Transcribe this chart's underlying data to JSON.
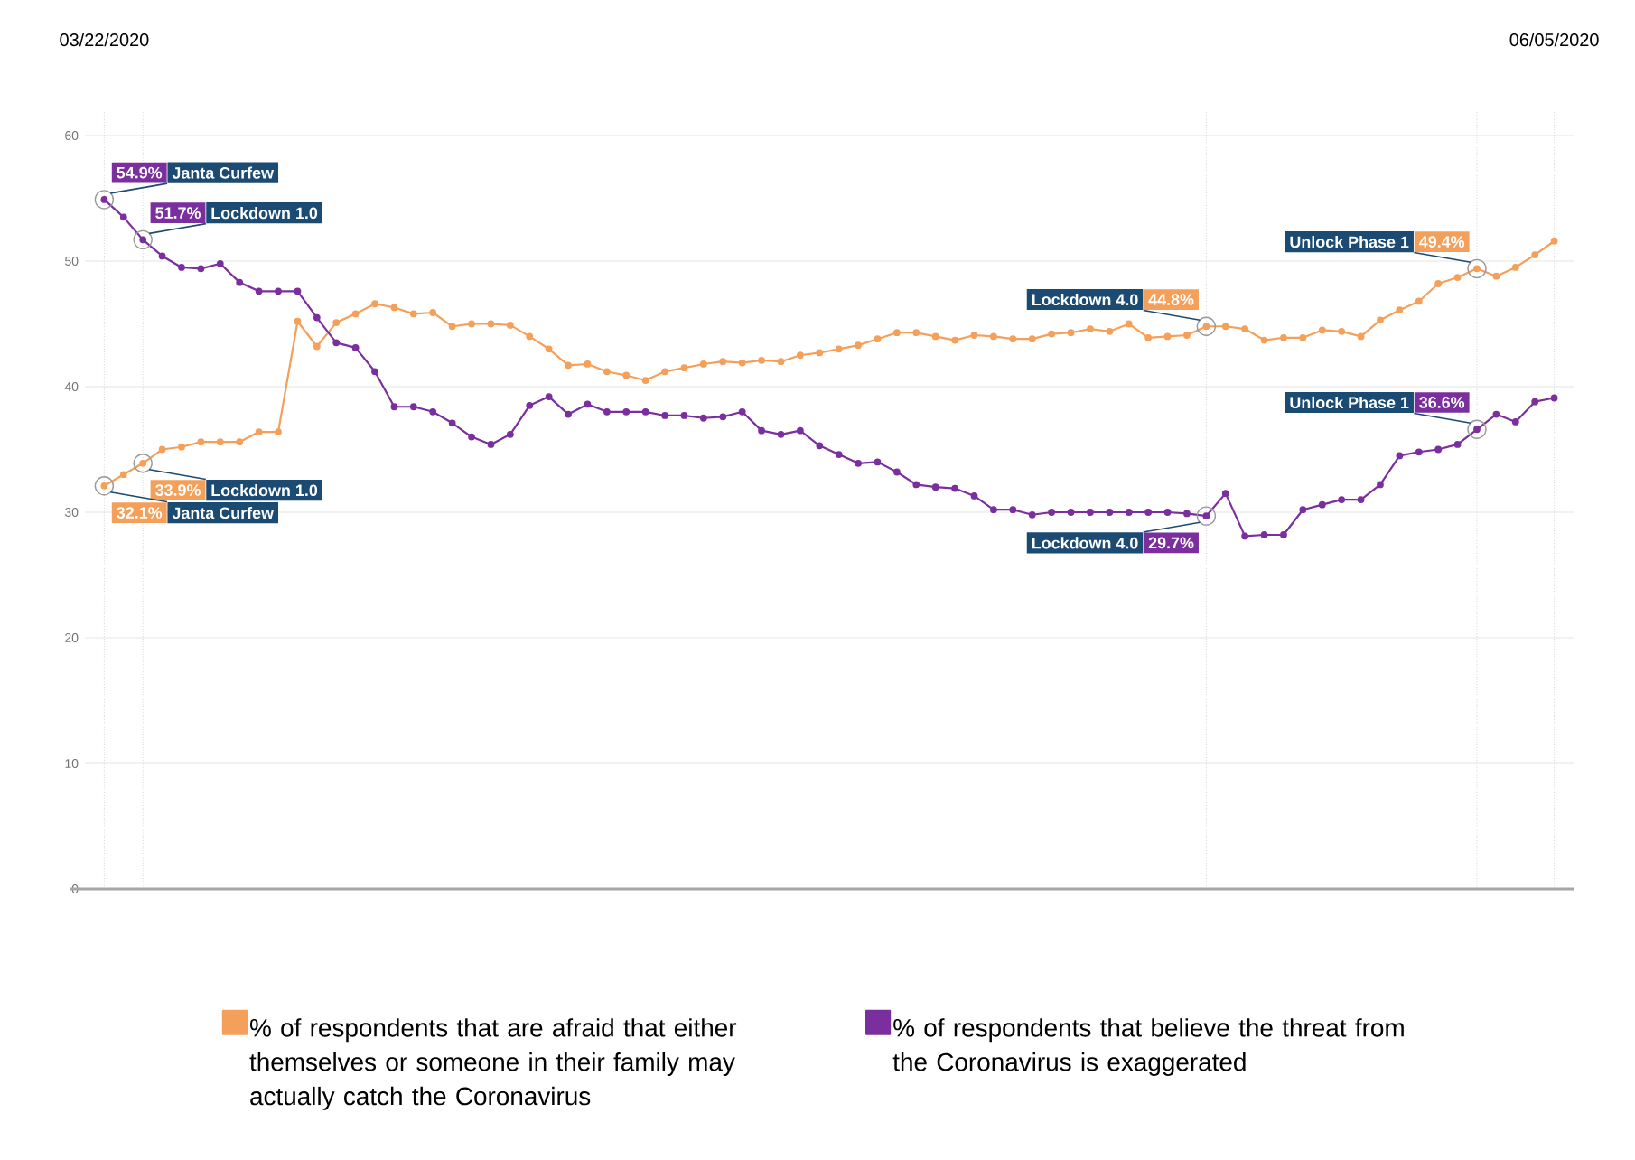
{
  "chart_data": {
    "type": "line",
    "x": [
      "2020-03-22",
      "2020-03-23",
      "2020-03-24",
      "2020-03-25",
      "2020-03-26",
      "2020-03-27",
      "2020-03-28",
      "2020-03-29",
      "2020-03-30",
      "2020-03-31",
      "2020-04-01",
      "2020-04-02",
      "2020-04-03",
      "2020-04-04",
      "2020-04-05",
      "2020-04-06",
      "2020-04-07",
      "2020-04-08",
      "2020-04-09",
      "2020-04-10",
      "2020-04-11",
      "2020-04-12",
      "2020-04-13",
      "2020-04-14",
      "2020-04-15",
      "2020-04-16",
      "2020-04-17",
      "2020-04-18",
      "2020-04-19",
      "2020-04-20",
      "2020-04-21",
      "2020-04-22",
      "2020-04-23",
      "2020-04-24",
      "2020-04-25",
      "2020-04-26",
      "2020-04-27",
      "2020-04-28",
      "2020-04-29",
      "2020-04-30",
      "2020-05-01",
      "2020-05-02",
      "2020-05-03",
      "2020-05-04",
      "2020-05-05",
      "2020-05-06",
      "2020-05-07",
      "2020-05-08",
      "2020-05-09",
      "2020-05-10",
      "2020-05-11",
      "2020-05-12",
      "2020-05-13",
      "2020-05-14",
      "2020-05-15",
      "2020-05-16",
      "2020-05-17",
      "2020-05-18",
      "2020-05-19",
      "2020-05-20",
      "2020-05-21",
      "2020-05-22",
      "2020-05-23",
      "2020-05-24",
      "2020-05-25",
      "2020-05-26",
      "2020-05-27",
      "2020-05-28",
      "2020-05-29",
      "2020-05-30",
      "2020-05-31",
      "2020-06-01",
      "2020-06-02",
      "2020-06-03",
      "2020-06-04",
      "2020-06-05"
    ],
    "series": [
      {
        "name": "% of respondents that are afraid that either themselves or someone in their family may actually catch the Coronavirus",
        "color": "#f5a05a",
        "values": [
          32.1,
          33,
          33.9,
          35,
          35.2,
          35.6,
          35.6,
          35.6,
          36.4,
          36.4,
          45.2,
          43.2,
          45.1,
          45.8,
          46.6,
          46.3,
          45.8,
          45.9,
          44.8,
          45,
          45,
          44.9,
          44,
          43,
          41.7,
          41.8,
          41.2,
          40.9,
          40.5,
          41.2,
          41.5,
          41.8,
          42,
          41.9,
          42.1,
          42,
          42.5,
          42.7,
          43,
          43.3,
          43.8,
          44.3,
          44.3,
          44,
          43.7,
          44.1,
          44,
          43.8,
          43.8,
          44.2,
          44.3,
          44.6,
          44.4,
          45,
          43.9,
          44,
          44.1,
          44.8,
          44.8,
          44.6,
          43.7,
          43.9,
          43.9,
          44.5,
          44.4,
          44,
          45.3,
          46.1,
          46.8,
          48.2,
          48.7,
          49.4,
          48.8,
          49.5,
          50.5,
          51.6
        ],
        "value_labels": [
          "32.1%",
          null,
          "33.9%",
          null,
          null,
          null,
          null,
          null,
          null,
          null,
          null,
          null,
          null,
          null,
          null,
          null,
          null,
          null,
          null,
          null,
          null,
          null,
          null,
          null,
          null,
          null,
          null,
          null,
          null,
          null,
          null,
          null,
          null,
          null,
          null,
          null,
          null,
          null,
          null,
          null,
          null,
          null,
          null,
          null,
          null,
          null,
          null,
          null,
          null,
          null,
          null,
          null,
          null,
          null,
          null,
          null,
          null,
          "44.8%",
          null,
          null,
          null,
          null,
          null,
          null,
          null,
          null,
          null,
          null,
          null,
          null,
          null,
          "49.4%",
          null,
          null,
          null,
          null
        ]
      },
      {
        "name": "% of respondents that believe the threat from the Coronavirus is exaggerated",
        "color": "#7b2f9e",
        "values": [
          54.9,
          53.5,
          51.7,
          50.4,
          49.5,
          49.4,
          49.8,
          48.3,
          47.6,
          47.6,
          47.6,
          45.5,
          43.5,
          43.1,
          41.2,
          38.4,
          38.4,
          38,
          37.1,
          36,
          35.4,
          36.2,
          38.5,
          39.2,
          37.8,
          38.6,
          38,
          38,
          38,
          37.7,
          37.7,
          37.5,
          37.6,
          38,
          36.5,
          36.2,
          36.5,
          35.3,
          34.6,
          33.9,
          34,
          33.2,
          32.2,
          32,
          31.9,
          31.3,
          30.2,
          30.2,
          29.8,
          30,
          30,
          30,
          30,
          30,
          30,
          30,
          29.9,
          29.7,
          31.5,
          28.1,
          28.2,
          28.2,
          30.2,
          30.6,
          31,
          31,
          32.2,
          34.5,
          34.8,
          35,
          35.4,
          36.6,
          37.8,
          37.2,
          38.8,
          39.1
        ],
        "value_labels": [
          "54.9%",
          null,
          "51.7%",
          null,
          null,
          null,
          null,
          null,
          null,
          null,
          null,
          null,
          null,
          null,
          null,
          null,
          null,
          null,
          null,
          null,
          null,
          null,
          null,
          null,
          null,
          null,
          null,
          null,
          null,
          null,
          null,
          null,
          null,
          null,
          null,
          null,
          null,
          null,
          null,
          null,
          null,
          null,
          null,
          null,
          null,
          null,
          null,
          null,
          null,
          null,
          null,
          null,
          null,
          null,
          null,
          null,
          null,
          "29.7%",
          null,
          null,
          null,
          null,
          null,
          null,
          null,
          null,
          null,
          null,
          null,
          null,
          null,
          "36.6%",
          null,
          null,
          null,
          null
        ]
      }
    ],
    "annotations": [
      {
        "text": "Janta Curfew",
        "x": "2020-03-22",
        "y": 54.9
      },
      {
        "text": "Lockdown 1.0",
        "x": "2020-03-24",
        "y": 51.7
      },
      {
        "text": "Lockdown 1.0",
        "x": "2020-03-24",
        "y": 33.9
      },
      {
        "text": "Janta Curfew",
        "x": "2020-03-22",
        "y": 32.1
      },
      {
        "text": "Lockdown 4.0",
        "x": "2020-05-18",
        "y": 44.8
      },
      {
        "text": "Lockdown 4.0",
        "x": "2020-05-18",
        "y": 29.7
      },
      {
        "text": "Unlock Phase 1",
        "x": "2020-06-01",
        "y": 49.4
      },
      {
        "text": "Unlock Phase 1",
        "x": "2020-06-01",
        "y": 36.6
      }
    ],
    "xlim": [
      "2020-03-21",
      "2020-06-06"
    ],
    "xticks": [
      {
        "value": "2020-03-22",
        "label": "03/22/2020"
      },
      {
        "value": "2020-03-24",
        "label": null
      },
      {
        "value": "2020-05-18",
        "label": null
      },
      {
        "value": "2020-06-01",
        "label": null
      },
      {
        "value": "2020-06-05",
        "label": "06/05/2020"
      }
    ],
    "ylim": [
      0,
      62
    ],
    "yticks": [
      0,
      10,
      20,
      30,
      40,
      50,
      60
    ],
    "grid": true,
    "legend": "bottom",
    "marker": "circle",
    "line_style": "solid"
  }
}
